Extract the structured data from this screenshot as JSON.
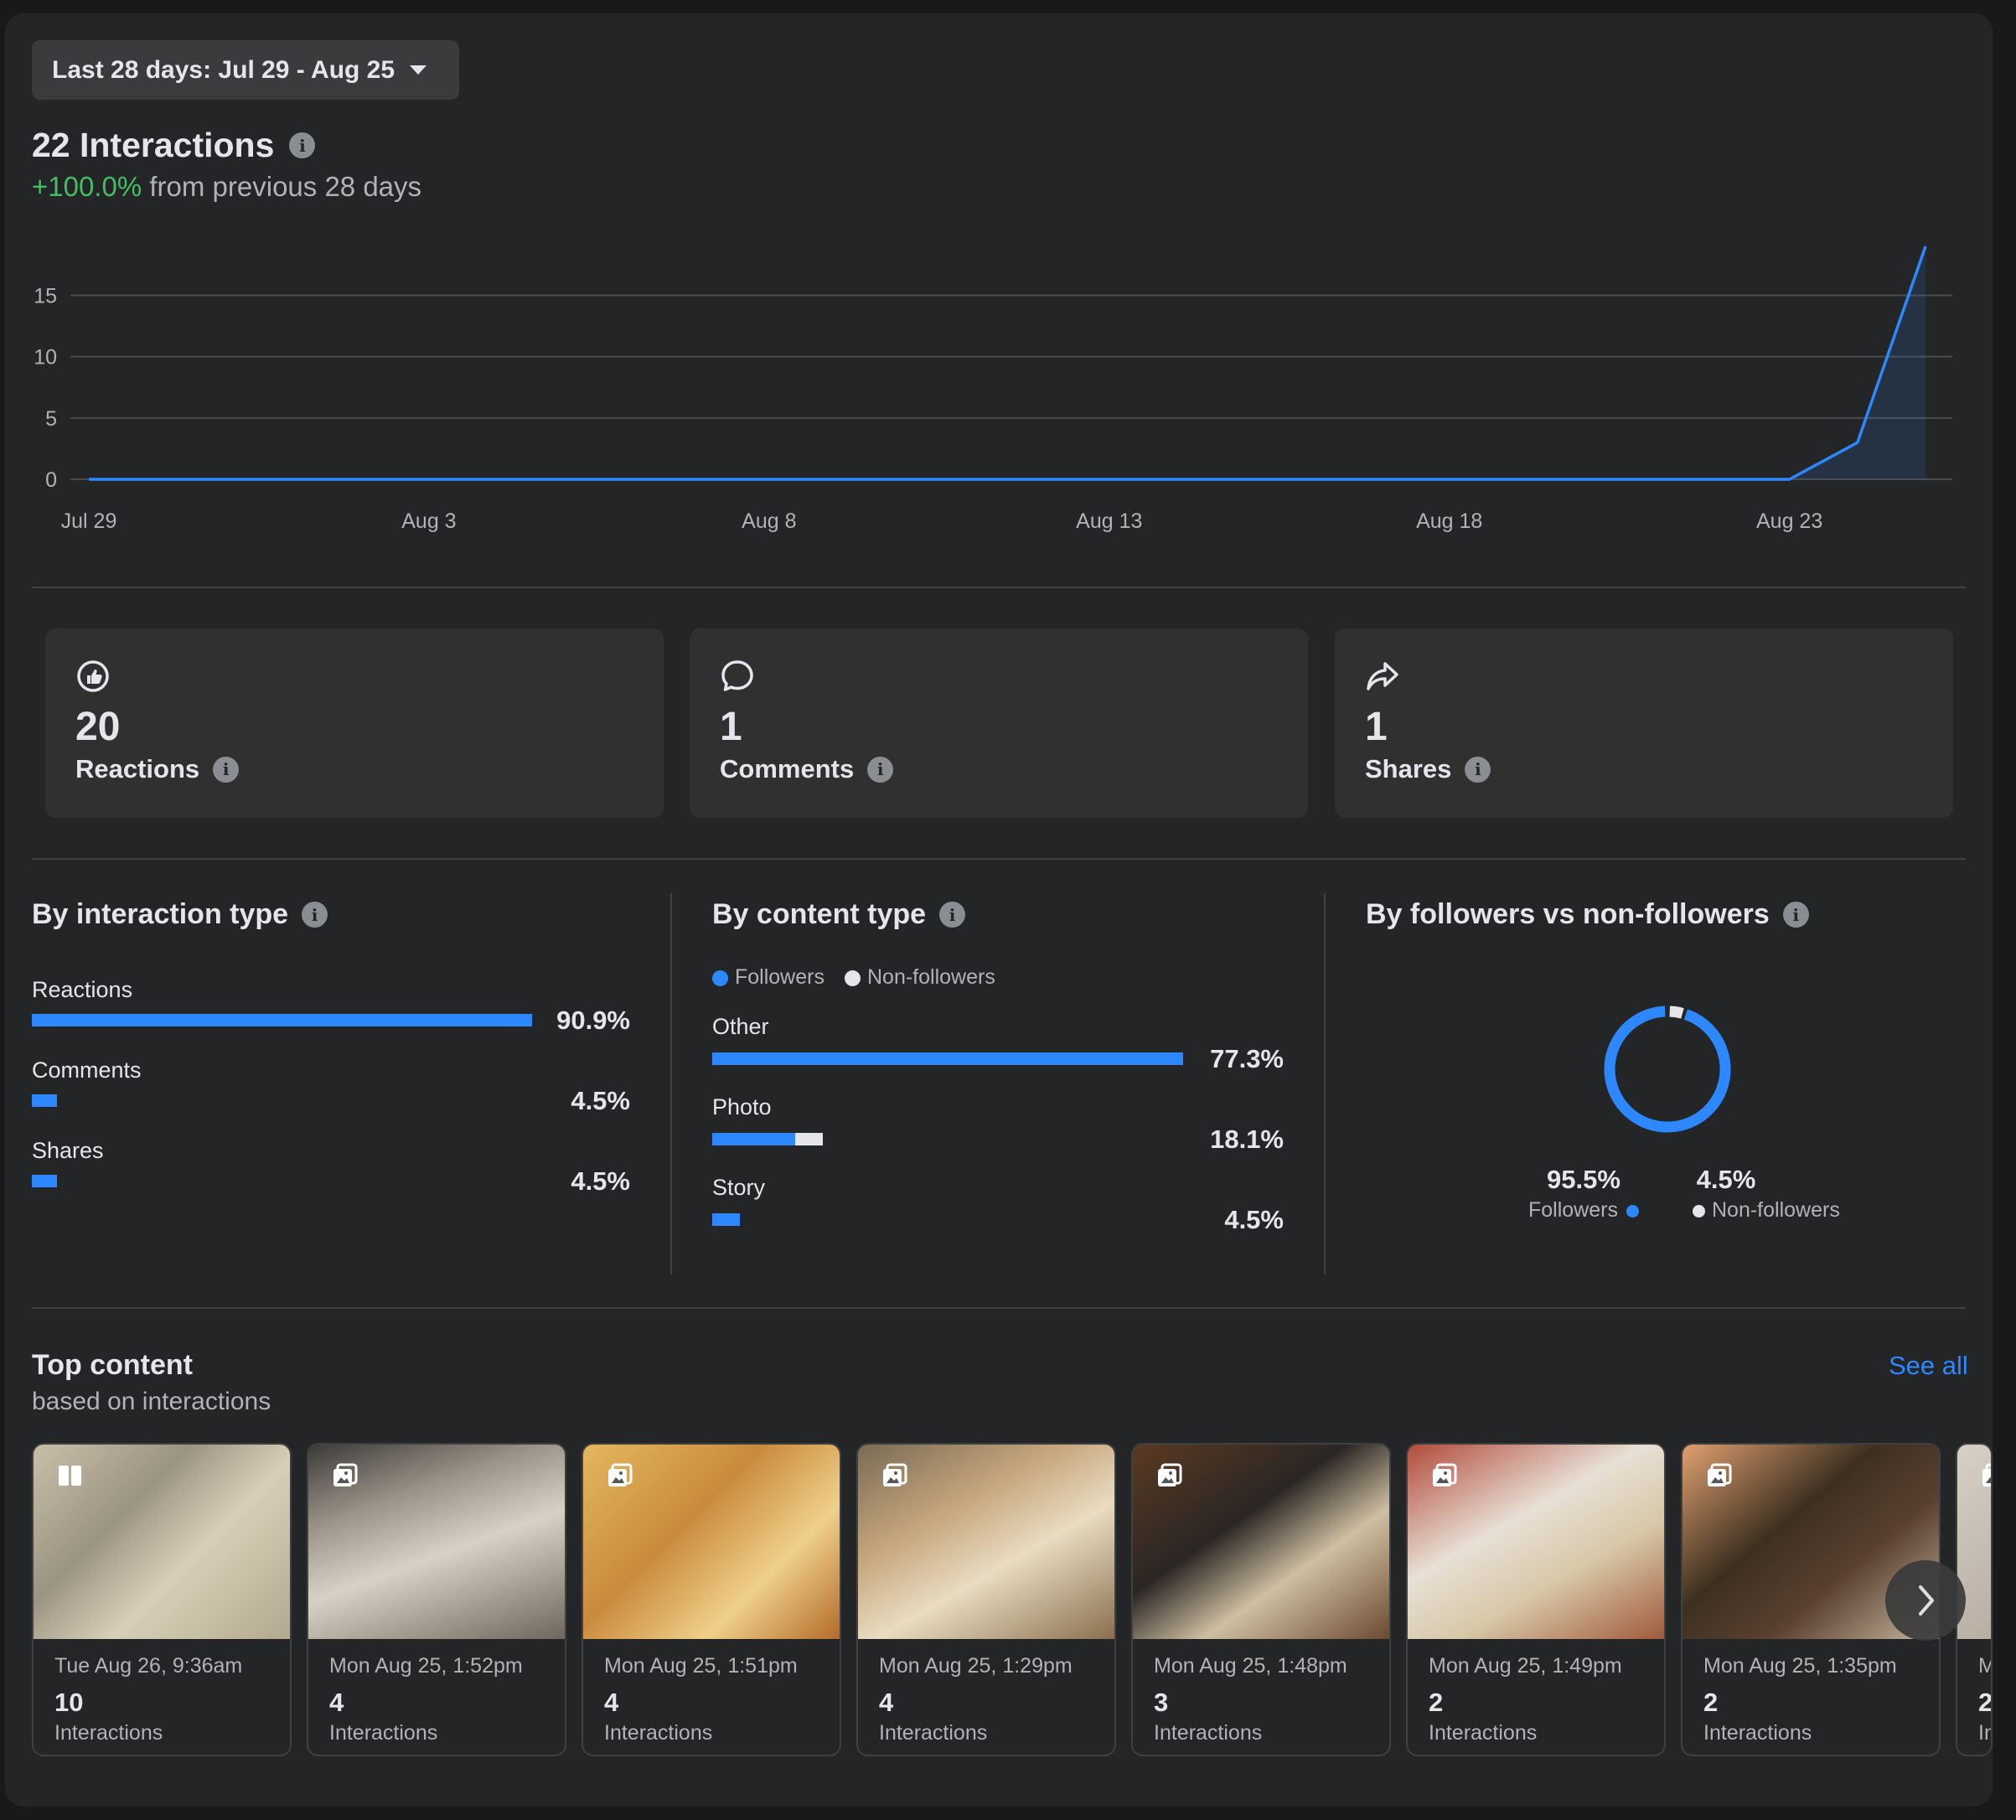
{
  "date_range": {
    "label": "Last 28 days: Jul 29 - Aug 25"
  },
  "summary": {
    "title": "22 Interactions",
    "delta": "+100.0%",
    "delta_suffix": " from previous 28 days"
  },
  "chart_data": {
    "type": "area",
    "x_ticks": [
      "Jul 29",
      "Aug 3",
      "Aug 8",
      "Aug 13",
      "Aug 18",
      "Aug 23"
    ],
    "y_ticks": [
      "15",
      "10",
      "5",
      "0"
    ],
    "ylim": [
      0,
      19
    ],
    "grid": true,
    "series": [
      {
        "x": [
          "Jul 29",
          "Jul 30",
          "Jul 31",
          "Aug 1",
          "Aug 2",
          "Aug 3",
          "Aug 4",
          "Aug 5",
          "Aug 6",
          "Aug 7",
          "Aug 8",
          "Aug 9",
          "Aug 10",
          "Aug 11",
          "Aug 12",
          "Aug 13",
          "Aug 14",
          "Aug 15",
          "Aug 16",
          "Aug 17",
          "Aug 18",
          "Aug 19",
          "Aug 20",
          "Aug 21",
          "Aug 22",
          "Aug 23",
          "Aug 24",
          "Aug 25"
        ],
        "values": [
          0,
          0,
          0,
          0,
          0,
          0,
          0,
          0,
          0,
          0,
          0,
          0,
          0,
          0,
          0,
          0,
          0,
          0,
          0,
          0,
          0,
          0,
          0,
          0,
          0,
          0,
          3,
          19
        ],
        "color": "#2d88ff"
      }
    ]
  },
  "cards": [
    {
      "icon": "reactions-icon",
      "value": "20",
      "label": "Reactions"
    },
    {
      "icon": "comment-icon",
      "value": "1",
      "label": "Comments"
    },
    {
      "icon": "share-icon",
      "value": "1",
      "label": "Shares"
    }
  ],
  "by_interaction": {
    "title": "By interaction type",
    "rows": [
      {
        "label": "Reactions",
        "pct": "90.9%",
        "value": 90.9
      },
      {
        "label": "Comments",
        "pct": "4.5%",
        "value": 4.5
      },
      {
        "label": "Shares",
        "pct": "4.5%",
        "value": 4.5
      }
    ]
  },
  "by_content": {
    "title": "By content type",
    "legend_followers": "Followers",
    "legend_nonfollowers": "Non-followers",
    "rows": [
      {
        "label": "Other",
        "pct": "77.3%",
        "followers": 77.3,
        "nonfollowers": 0
      },
      {
        "label": "Photo",
        "pct": "18.1%",
        "followers": 13.6,
        "nonfollowers": 4.5
      },
      {
        "label": "Story",
        "pct": "4.5%",
        "followers": 4.5,
        "nonfollowers": 0
      }
    ]
  },
  "by_followers": {
    "title": "By followers vs non-followers",
    "followers_pct": "95.5%",
    "followers_label": "Followers",
    "nonfollowers_pct": "4.5%",
    "nonfollowers_label": "Non-followers",
    "followers_value": 95.5,
    "nonfollowers_value": 4.5
  },
  "colors": {
    "accent": "#2d88ff",
    "positive": "#45bd62",
    "nonfollower": "#e4e6eb"
  },
  "top_content": {
    "title": "Top content",
    "subtitle": "based on interactions",
    "see_all": "See all",
    "items": [
      {
        "date": "Tue Aug 26, 9:36am",
        "count": "10",
        "unit": "Interactions",
        "type": "reel-icon"
      },
      {
        "date": "Mon Aug 25, 1:52pm",
        "count": "4",
        "unit": "Interactions",
        "type": "photos-icon"
      },
      {
        "date": "Mon Aug 25, 1:51pm",
        "count": "4",
        "unit": "Interactions",
        "type": "photos-icon"
      },
      {
        "date": "Mon Aug 25, 1:29pm",
        "count": "4",
        "unit": "Interactions",
        "type": "photos-icon"
      },
      {
        "date": "Mon Aug 25, 1:48pm",
        "count": "3",
        "unit": "Interactions",
        "type": "photos-icon"
      },
      {
        "date": "Mon Aug 25, 1:49pm",
        "count": "2",
        "unit": "Interactions",
        "type": "photos-icon"
      },
      {
        "date": "Mon Aug 25, 1:35pm",
        "count": "2",
        "unit": "Interactions",
        "type": "photos-icon"
      },
      {
        "date": "M",
        "count": "2",
        "unit": "In",
        "type": "photos-icon"
      }
    ]
  }
}
